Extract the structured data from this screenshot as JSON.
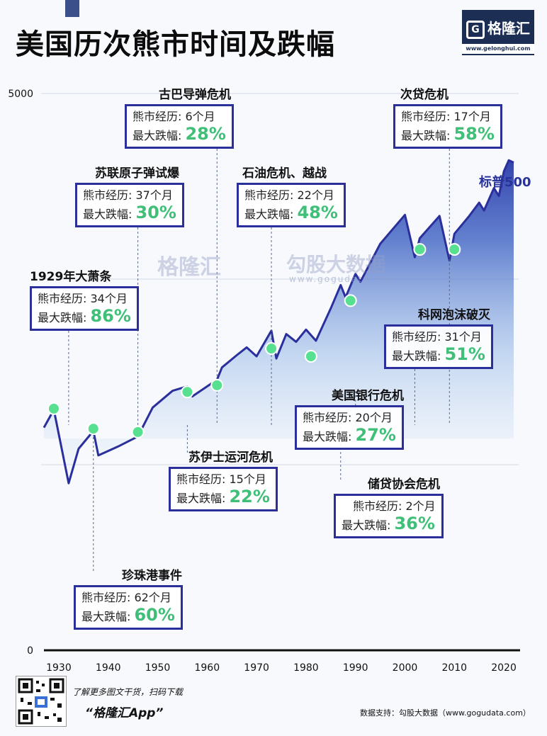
{
  "title": "美国历次熊市时间及跌幅",
  "logo": {
    "name": "格隆汇",
    "url": "www.gelonghui.com",
    "mark": "G"
  },
  "series_label": "标普500",
  "watermarks": {
    "brand": "格隆汇",
    "brand_url": "www.gelonghui.com",
    "data_brand": "勾股大数据",
    "data_url": "www.gogudata.com"
  },
  "labels": {
    "duration_prefix": "熊市经历: ",
    "drop_prefix": "最大跌幅: "
  },
  "callouts": [
    {
      "id": "depression",
      "title": "1929年大萧条",
      "duration": "34个月",
      "drop": "86%",
      "year": 1932
    },
    {
      "id": "pearl",
      "title": "珍珠港事件",
      "duration": "62个月",
      "drop": "60%",
      "year": 1937
    },
    {
      "id": "soviet",
      "title": "苏联原子弹试爆",
      "duration": "37个月",
      "drop": "30%",
      "year": 1946
    },
    {
      "id": "suez",
      "title": "苏伊士运河危机",
      "duration": "15个月",
      "drop": "22%",
      "year": 1956
    },
    {
      "id": "cuba",
      "title": "古巴导弹危机",
      "duration": "6个月",
      "drop": "28%",
      "year": 1962
    },
    {
      "id": "oil",
      "title": "石油危机、越战",
      "duration": "22个月",
      "drop": "48%",
      "year": 1973
    },
    {
      "id": "savings",
      "title": "储贷协会危机",
      "duration": "2个月",
      "drop": "36%",
      "year": 1987
    },
    {
      "id": "bofa",
      "title": "美国银行危机",
      "duration": "20个月",
      "drop": "27%",
      "year": 1990
    },
    {
      "id": "dotcom",
      "title": "科网泡沫破灭",
      "duration": "31个月",
      "drop": "51%",
      "year": 2002
    },
    {
      "id": "subprime",
      "title": "次贷危机",
      "duration": "17个月",
      "drop": "58%",
      "year": 2009
    }
  ],
  "chart_data": {
    "type": "line",
    "title": "美国历次熊市时间及跌幅",
    "series": [
      {
        "name": "标普500"
      }
    ],
    "xlim": [
      1927,
      2023
    ],
    "ylim": [
      0,
      5000
    ],
    "x_ticks": [
      "1930",
      "1940",
      "1950",
      "1960",
      "1970",
      "1980",
      "1990",
      "2000",
      "2010",
      "2020"
    ],
    "y_ticks": [
      "0",
      "5000"
    ],
    "x": [
      1927,
      1929,
      1932,
      1934,
      1937,
      1938,
      1942,
      1946,
      1949,
      1953,
      1956,
      1957,
      1962,
      1963,
      1966,
      1968,
      1970,
      1973,
      1974,
      1976,
      1978,
      1980,
      1982,
      1985,
      1987,
      1988,
      1990,
      1991,
      1995,
      2000,
      2002,
      2003,
      2007,
      2009,
      2010,
      2013,
      2015,
      2016,
      2018,
      2019,
      2020,
      2021,
      2022
    ],
    "y": [
      2000,
      2160,
      1500,
      1810,
      1970,
      1750,
      1830,
      1920,
      2180,
      2330,
      2370,
      2280,
      2430,
      2540,
      2650,
      2720,
      2640,
      2870,
      2620,
      2840,
      2770,
      2880,
      2780,
      3070,
      3280,
      3170,
      3380,
      3310,
      3650,
      3910,
      3530,
      3700,
      3900,
      3500,
      3740,
      3900,
      4020,
      3950,
      4150,
      4080,
      4300,
      4400,
      4380
    ],
    "markers": [
      {
        "x": 1929,
        "y": 2170
      },
      {
        "x": 1937,
        "y": 1990
      },
      {
        "x": 1946,
        "y": 1960
      },
      {
        "x": 1956,
        "y": 2320
      },
      {
        "x": 1962,
        "y": 2380
      },
      {
        "x": 1973,
        "y": 2710
      },
      {
        "x": 1981,
        "y": 2640
      },
      {
        "x": 1989,
        "y": 3140
      },
      {
        "x": 2003,
        "y": 3600
      },
      {
        "x": 2010,
        "y": 3600
      }
    ]
  },
  "footer": {
    "qr_text": "了解更多图文干货，扫码下载",
    "app": "“格隆汇App”",
    "source": "数据支持：勾股大数据（www.gogudata.com）"
  }
}
